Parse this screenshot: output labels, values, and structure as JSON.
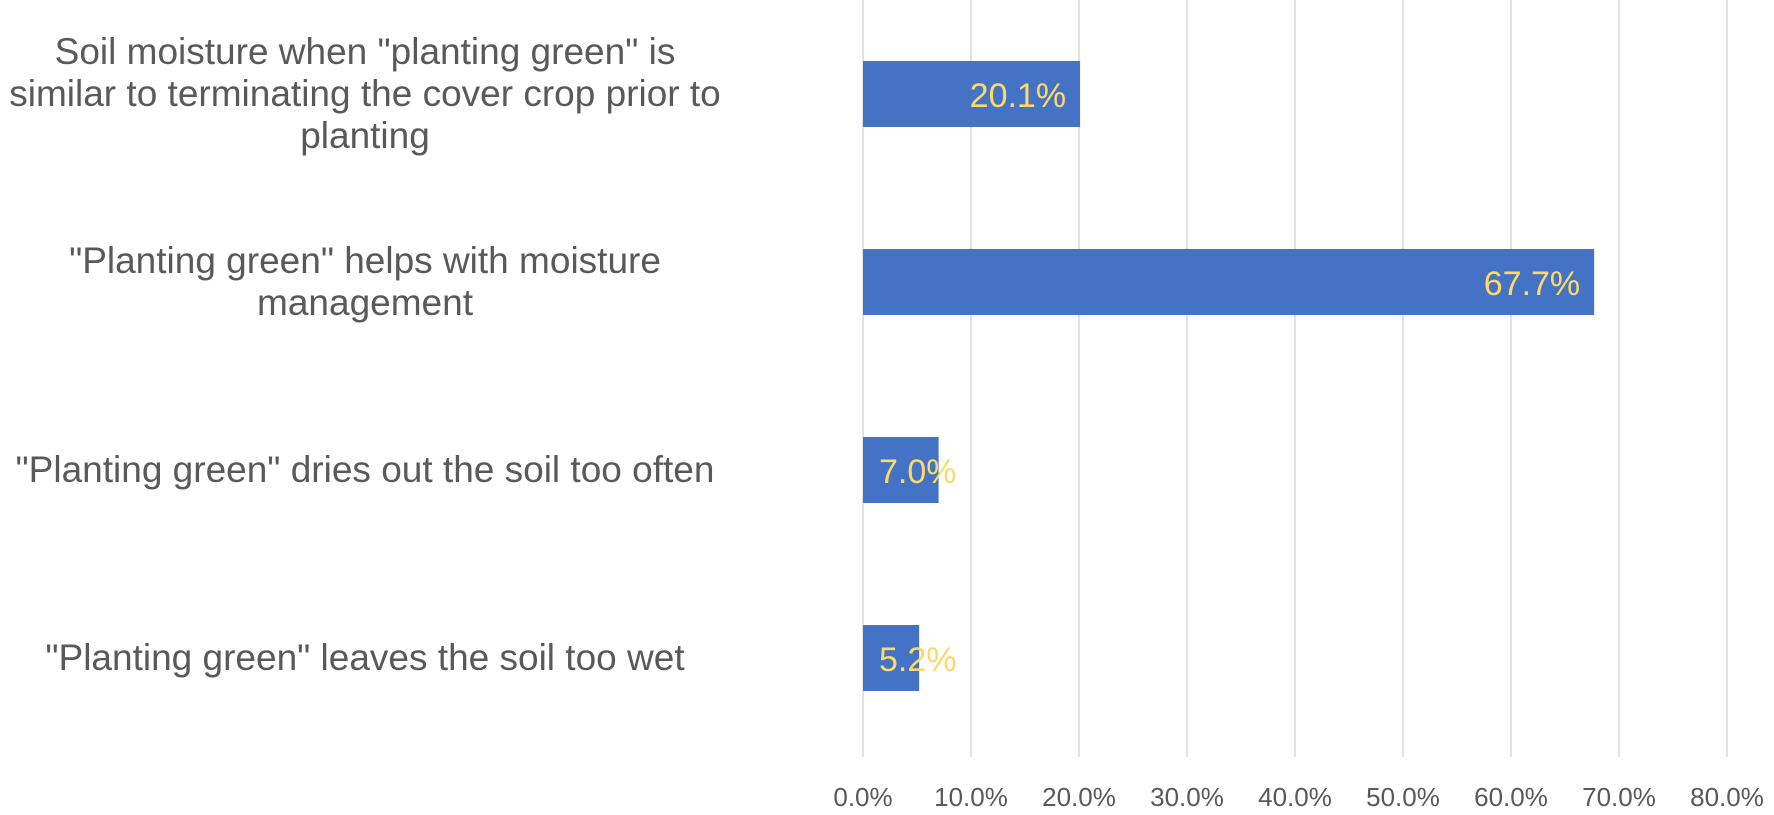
{
  "chart_data": {
    "type": "bar",
    "orientation": "horizontal",
    "categories": [
      "Soil moisture when \"planting green\" is similar to terminating the cover crop prior to planting",
      "\"Planting green\" helps with moisture management",
      "\"Planting green\" dries out the soil too often",
      "\"Planting green\" leaves the soil too wet"
    ],
    "values": [
      20.1,
      67.7,
      7.0,
      5.2
    ],
    "data_labels": [
      "20.1%",
      "67.7%",
      "7.0%",
      "5.2%"
    ],
    "x_ticks": [
      "0.0%",
      "10.0%",
      "20.0%",
      "30.0%",
      "40.0%",
      "50.0%",
      "60.0%",
      "70.0%",
      "80.0%"
    ],
    "xlim": [
      0,
      80
    ],
    "grid": "vertical",
    "legend": "none",
    "colors": {
      "bar": "#4472C4",
      "data_label": "#FFD966",
      "gridline": "#D9D9D9",
      "text": "#595959"
    }
  }
}
